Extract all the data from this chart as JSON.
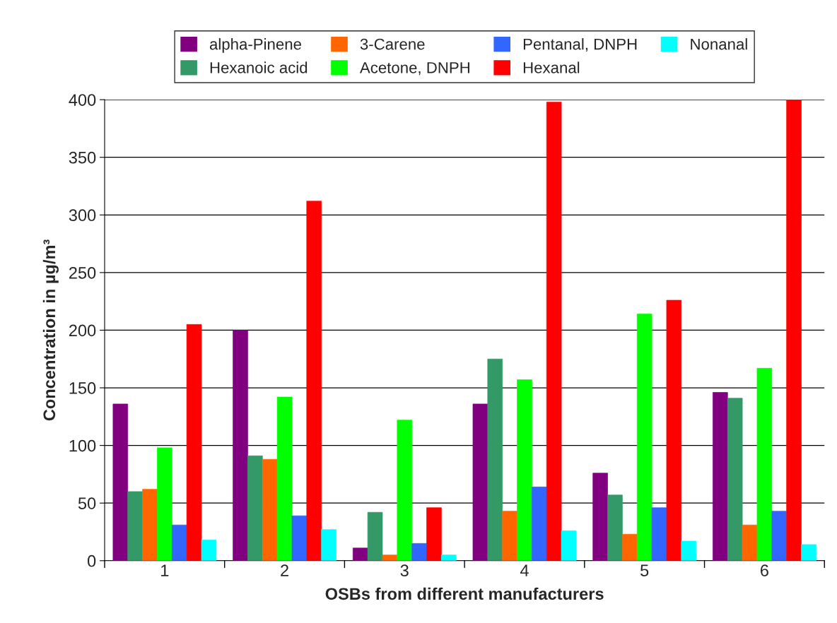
{
  "chart_data": {
    "type": "bar",
    "xlabel": "OSBs from different manufacturers",
    "ylabel": "Concentration in µg/m³",
    "categories": [
      "1",
      "2",
      "3",
      "4",
      "5",
      "6"
    ],
    "series": [
      {
        "name": "alpha-Pinene",
        "color": "#800080",
        "values": [
          136,
          200,
          11,
          136,
          76,
          146
        ]
      },
      {
        "name": "Hexanoic acid",
        "color": "#339966",
        "values": [
          60,
          91,
          42,
          175,
          57,
          141
        ]
      },
      {
        "name": "3-Carene",
        "color": "#ff6600",
        "values": [
          62,
          88,
          5,
          43,
          23,
          31
        ]
      },
      {
        "name": "Acetone, DNPH",
        "color": "#00ff00",
        "values": [
          98,
          142,
          122,
          157,
          214,
          167
        ]
      },
      {
        "name": "Pentanal, DNPH",
        "color": "#3366ff",
        "values": [
          31,
          39,
          15,
          64,
          46,
          43
        ]
      },
      {
        "name": "Hexanal",
        "color": "#ff0000",
        "values": [
          205,
          312,
          46,
          398,
          226,
          400
        ]
      },
      {
        "name": "Nonanal",
        "color": "#00ffff",
        "values": [
          18,
          27,
          5,
          26,
          17,
          14
        ]
      }
    ],
    "ylim": [
      0,
      400
    ],
    "yticks": [
      0,
      50,
      100,
      150,
      200,
      250,
      300,
      350,
      400
    ],
    "grid": "y",
    "legend": "top"
  }
}
